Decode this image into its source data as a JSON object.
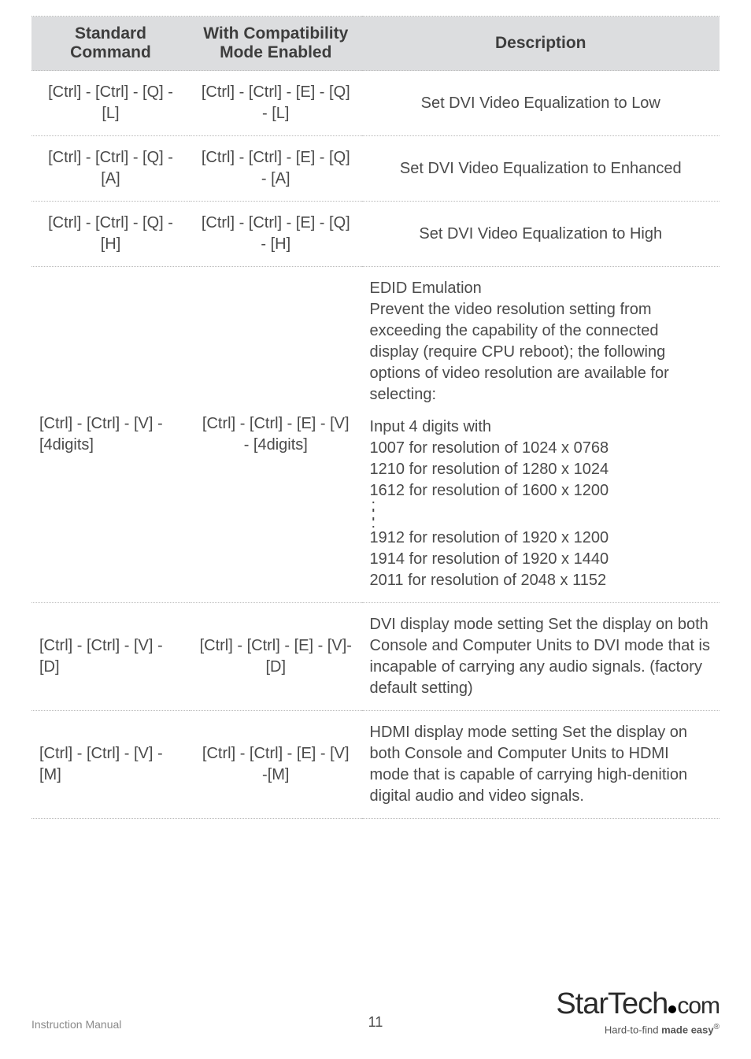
{
  "table": {
    "headers": {
      "standard": "Standard Command",
      "mode": "With Compatibility Mode Enabled",
      "description": "Description"
    },
    "rows": [
      {
        "std": "[Ctrl] - [Ctrl] - [Q] - [L]",
        "mode": "[Ctrl] - [Ctrl] - [E] - [Q] - [L]",
        "desc": "Set DVI Video Equalization to Low",
        "desc_center": true
      },
      {
        "std": "[Ctrl] - [Ctrl] - [Q] - [A]",
        "mode": "[Ctrl] - [Ctrl] - [E] - [Q] - [A]",
        "desc": "Set DVI Video Equalization to Enhanced",
        "desc_center": true
      },
      {
        "std": "[Ctrl] - [Ctrl] - [Q] - [H]",
        "mode": "[Ctrl] - [Ctrl] - [E] - [Q] - [H]",
        "desc": "Set DVI Video Equalization to High",
        "desc_center": true
      }
    ],
    "edid": {
      "std": "[Ctrl] - [Ctrl] - [V] - [4digits]",
      "mode": "[Ctrl] - [Ctrl] - [E] - [V] - [4digits]",
      "p1_l1": "EDID Emulation",
      "p1_l2": "Prevent the video resolution setting from exceeding the capability of the connected display (require CPU reboot); the following options of video resolution are available for selecting:",
      "p2_l1": "Input 4 digits with",
      "p2_l2": "1007 for resolution of 1024 x 0768",
      "p2_l3": "1210 for resolution of 1280 x 1024",
      "p2_l4": "1612 for resolution of 1600 x 1200",
      "p3_l1": "1912 for resolution of 1920 x 1200",
      "p3_l2": "1914 for resolution of 1920 x 1440",
      "p3_l3": "2011 for resolution of 2048 x 1152"
    },
    "row_dvi": {
      "std": "[Ctrl] - [Ctrl] - [V] - [D]",
      "mode": "[Ctrl] - [Ctrl] - [E] - [V]-[D]",
      "desc": "DVI display mode setting Set the display on both Console and Computer Units to DVI mode that is incapable of carrying any audio signals. (factory default setting)"
    },
    "row_hdmi": {
      "std": "[Ctrl] - [Ctrl] - [V] - [M]",
      "mode": "[Ctrl] - [Ctrl] - [E] - [V] -[M]",
      "desc": "HDMI display mode setting Set the display on both Console and Computer Units to HDMI mode that is capable of carrying high-denition digital audio and video signals."
    }
  },
  "footer": {
    "left": "Instruction Manual",
    "page": "11",
    "logo_a": "Star",
    "logo_b": "Tech",
    "logo_c": "com",
    "tagline_a": "Hard-to-find ",
    "tagline_b": "made easy"
  }
}
